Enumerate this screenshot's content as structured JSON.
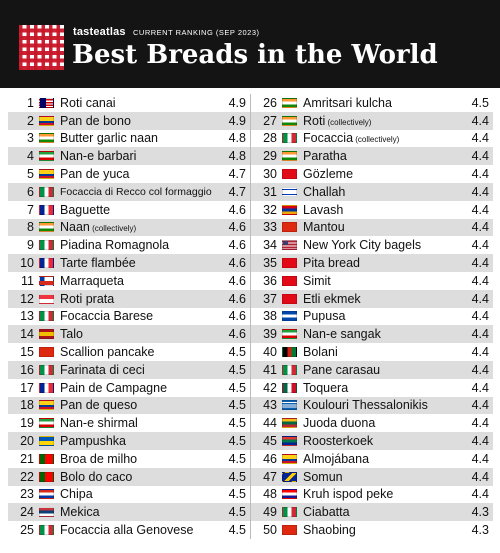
{
  "header": {
    "brand_main": "tasteatlas",
    "ranking_label": "CURRENT RANKING (SEP 2023)",
    "title": "Best Breads in the World"
  },
  "icons": {
    "logo": "checkered-tablecloth-logo"
  },
  "left_column": [
    {
      "rank": "1",
      "name": "Roti canai",
      "suffix": "",
      "score": "4.9",
      "flag": "malaysia",
      "colors": [
        "#cc0001",
        "#ffffff",
        "#010066"
      ],
      "shaded": false
    },
    {
      "rank": "2",
      "name": "Pan de bono",
      "suffix": "",
      "score": "4.9",
      "flag": "colombia",
      "colors": [
        "#fcd116",
        "#003893",
        "#ce1126"
      ],
      "shaded": true
    },
    {
      "rank": "3",
      "name": "Butter garlic naan",
      "suffix": "",
      "score": "4.8",
      "flag": "india",
      "colors": [
        "#ff9933",
        "#ffffff",
        "#138808"
      ],
      "shaded": false
    },
    {
      "rank": "4",
      "name": "Nan-e barbari",
      "suffix": "",
      "score": "4.8",
      "flag": "iran",
      "colors": [
        "#239f40",
        "#ffffff",
        "#da0000"
      ],
      "shaded": true
    },
    {
      "rank": "5",
      "name": "Pan de yuca",
      "suffix": "",
      "score": "4.7",
      "flag": "colombia",
      "colors": [
        "#fcd116",
        "#003893",
        "#ce1126"
      ],
      "shaded": false
    },
    {
      "rank": "6",
      "name": "Focaccia di Recco col formaggio",
      "suffix": "",
      "score": "4.7",
      "flag": "italy",
      "colors": [
        "#009246",
        "#ffffff",
        "#ce2b37"
      ],
      "shaded": true,
      "small": true
    },
    {
      "rank": "7",
      "name": "Baguette",
      "suffix": "",
      "score": "4.6",
      "flag": "france",
      "colors": [
        "#002395",
        "#ffffff",
        "#ed2939"
      ],
      "shaded": false
    },
    {
      "rank": "8",
      "name": "Naan",
      "suffix": "(collectively)",
      "score": "4.6",
      "flag": "india",
      "colors": [
        "#ff9933",
        "#ffffff",
        "#138808"
      ],
      "shaded": true
    },
    {
      "rank": "9",
      "name": "Piadina Romagnola",
      "suffix": "",
      "score": "4.6",
      "flag": "italy",
      "colors": [
        "#009246",
        "#ffffff",
        "#ce2b37"
      ],
      "shaded": false
    },
    {
      "rank": "10",
      "name": "Tarte flambée",
      "suffix": "",
      "score": "4.6",
      "flag": "france",
      "colors": [
        "#002395",
        "#ffffff",
        "#ed2939"
      ],
      "shaded": true
    },
    {
      "rank": "11",
      "name": "Marraqueta",
      "suffix": "",
      "score": "4.6",
      "flag": "chile",
      "colors": [
        "#ffffff",
        "#d52b1e",
        "#0039a6"
      ],
      "shaded": false
    },
    {
      "rank": "12",
      "name": "Roti prata",
      "suffix": "",
      "score": "4.6",
      "flag": "singapore",
      "colors": [
        "#ef3340",
        "#ffffff",
        "#ffffff"
      ],
      "shaded": true
    },
    {
      "rank": "13",
      "name": "Focaccia Barese",
      "suffix": "",
      "score": "4.6",
      "flag": "italy",
      "colors": [
        "#009246",
        "#ffffff",
        "#ce2b37"
      ],
      "shaded": false
    },
    {
      "rank": "14",
      "name": "Talo",
      "suffix": "",
      "score": "4.6",
      "flag": "spain",
      "colors": [
        "#aa151b",
        "#f1bf00",
        "#aa151b"
      ],
      "shaded": true
    },
    {
      "rank": "15",
      "name": "Scallion pancake",
      "suffix": "",
      "score": "4.5",
      "flag": "china",
      "colors": [
        "#de2910",
        "#de2910",
        "#de2910"
      ],
      "shaded": false
    },
    {
      "rank": "16",
      "name": "Farinata di ceci",
      "suffix": "",
      "score": "4.5",
      "flag": "italy",
      "colors": [
        "#009246",
        "#ffffff",
        "#ce2b37"
      ],
      "shaded": true
    },
    {
      "rank": "17",
      "name": "Pain de Campagne",
      "suffix": "",
      "score": "4.5",
      "flag": "france",
      "colors": [
        "#002395",
        "#ffffff",
        "#ed2939"
      ],
      "shaded": false
    },
    {
      "rank": "18",
      "name": "Pan de queso",
      "suffix": "",
      "score": "4.5",
      "flag": "colombia",
      "colors": [
        "#fcd116",
        "#003893",
        "#ce1126"
      ],
      "shaded": true
    },
    {
      "rank": "19",
      "name": "Nan-e shirmal",
      "suffix": "",
      "score": "4.5",
      "flag": "iran",
      "colors": [
        "#239f40",
        "#ffffff",
        "#da0000"
      ],
      "shaded": false
    },
    {
      "rank": "20",
      "name": "Pampushka",
      "suffix": "",
      "score": "4.5",
      "flag": "ukraine",
      "colors": [
        "#0057b7",
        "#0057b7",
        "#ffd700"
      ],
      "shaded": true
    },
    {
      "rank": "21",
      "name": "Broa de milho",
      "suffix": "",
      "score": "4.5",
      "flag": "portugal",
      "colors": [
        "#006600",
        "#ff0000",
        "#ff0000"
      ],
      "shaded": false
    },
    {
      "rank": "22",
      "name": "Bolo do caco",
      "suffix": "",
      "score": "4.5",
      "flag": "portugal",
      "colors": [
        "#006600",
        "#ff0000",
        "#ff0000"
      ],
      "shaded": true
    },
    {
      "rank": "23",
      "name": "Chipa",
      "suffix": "",
      "score": "4.5",
      "flag": "paraguay",
      "colors": [
        "#d52b1e",
        "#ffffff",
        "#0038a8"
      ],
      "shaded": false
    },
    {
      "rank": "24",
      "name": "Mekica",
      "suffix": "",
      "score": "4.5",
      "flag": "serbia",
      "colors": [
        "#c6363c",
        "#0c4076",
        "#ffffff"
      ],
      "shaded": true
    },
    {
      "rank": "25",
      "name": "Focaccia alla Genovese",
      "suffix": "",
      "score": "4.5",
      "flag": "italy",
      "colors": [
        "#009246",
        "#ffffff",
        "#ce2b37"
      ],
      "shaded": false
    }
  ],
  "right_column": [
    {
      "rank": "26",
      "name": "Amritsari kulcha",
      "suffix": "",
      "score": "4.5",
      "flag": "india",
      "colors": [
        "#ff9933",
        "#ffffff",
        "#138808"
      ],
      "shaded": false
    },
    {
      "rank": "27",
      "name": "Roti",
      "suffix": "(collectively)",
      "score": "4.4",
      "flag": "india",
      "colors": [
        "#ff9933",
        "#ffffff",
        "#138808"
      ],
      "shaded": true
    },
    {
      "rank": "28",
      "name": "Focaccia",
      "suffix": "(collectively)",
      "score": "4.4",
      "flag": "italy",
      "colors": [
        "#009246",
        "#ffffff",
        "#ce2b37"
      ],
      "shaded": false
    },
    {
      "rank": "29",
      "name": "Paratha",
      "suffix": "",
      "score": "4.4",
      "flag": "india",
      "colors": [
        "#ff9933",
        "#ffffff",
        "#138808"
      ],
      "shaded": true
    },
    {
      "rank": "30",
      "name": "Gözleme",
      "suffix": "",
      "score": "4.4",
      "flag": "turkey",
      "colors": [
        "#e30a17",
        "#e30a17",
        "#e30a17"
      ],
      "shaded": false
    },
    {
      "rank": "31",
      "name": "Challah",
      "suffix": "",
      "score": "4.4",
      "flag": "israel",
      "colors": [
        "#0038b8",
        "#ffffff",
        "#0038b8"
      ],
      "shaded": true
    },
    {
      "rank": "32",
      "name": "Lavash",
      "suffix": "",
      "score": "4.4",
      "flag": "armenia",
      "colors": [
        "#d90012",
        "#0033a0",
        "#f2a800"
      ],
      "shaded": false
    },
    {
      "rank": "33",
      "name": "Mantou",
      "suffix": "",
      "score": "4.4",
      "flag": "china",
      "colors": [
        "#de2910",
        "#de2910",
        "#de2910"
      ],
      "shaded": true
    },
    {
      "rank": "34",
      "name": "New York City bagels",
      "suffix": "",
      "score": "4.4",
      "flag": "usa",
      "colors": [
        "#b22234",
        "#ffffff",
        "#3c3b6e"
      ],
      "shaded": false
    },
    {
      "rank": "35",
      "name": "Pita bread",
      "suffix": "",
      "score": "4.4",
      "flag": "turkey",
      "colors": [
        "#e30a17",
        "#e30a17",
        "#e30a17"
      ],
      "shaded": true
    },
    {
      "rank": "36",
      "name": "Simit",
      "suffix": "",
      "score": "4.4",
      "flag": "turkey",
      "colors": [
        "#e30a17",
        "#e30a17",
        "#e30a17"
      ],
      "shaded": false
    },
    {
      "rank": "37",
      "name": "Etli ekmek",
      "suffix": "",
      "score": "4.4",
      "flag": "turkey",
      "colors": [
        "#e30a17",
        "#e30a17",
        "#e30a17"
      ],
      "shaded": true
    },
    {
      "rank": "38",
      "name": "Pupusa",
      "suffix": "",
      "score": "4.4",
      "flag": "el-salvador",
      "colors": [
        "#0047ab",
        "#ffffff",
        "#0047ab"
      ],
      "shaded": false
    },
    {
      "rank": "39",
      "name": "Nan-e sangak",
      "suffix": "",
      "score": "4.4",
      "flag": "iran",
      "colors": [
        "#239f40",
        "#ffffff",
        "#da0000"
      ],
      "shaded": true
    },
    {
      "rank": "40",
      "name": "Bolani",
      "suffix": "",
      "score": "4.4",
      "flag": "afghanistan",
      "colors": [
        "#000000",
        "#d32011",
        "#007a36"
      ],
      "shaded": false
    },
    {
      "rank": "41",
      "name": "Pane carasau",
      "suffix": "",
      "score": "4.4",
      "flag": "italy",
      "colors": [
        "#009246",
        "#ffffff",
        "#ce2b37"
      ],
      "shaded": true
    },
    {
      "rank": "42",
      "name": "Toquera",
      "suffix": "",
      "score": "4.4",
      "flag": "mexico",
      "colors": [
        "#006847",
        "#ffffff",
        "#ce1126"
      ],
      "shaded": false
    },
    {
      "rank": "43",
      "name": "Koulouri Thessalonikis",
      "suffix": "",
      "score": "4.4",
      "flag": "greece",
      "colors": [
        "#0d5eaf",
        "#ffffff",
        "#0d5eaf"
      ],
      "shaded": true
    },
    {
      "rank": "44",
      "name": "Juoda duona",
      "suffix": "",
      "score": "4.4",
      "flag": "lithuania",
      "colors": [
        "#fdb913",
        "#006a44",
        "#c1272d"
      ],
      "shaded": false
    },
    {
      "rank": "45",
      "name": "Roosterkoek",
      "suffix": "",
      "score": "4.4",
      "flag": "south-africa",
      "colors": [
        "#007a4d",
        "#ffb612",
        "#de3831"
      ],
      "shaded": true
    },
    {
      "rank": "46",
      "name": "Almojábana",
      "suffix": "",
      "score": "4.4",
      "flag": "colombia",
      "colors": [
        "#fcd116",
        "#003893",
        "#ce1126"
      ],
      "shaded": false
    },
    {
      "rank": "47",
      "name": "Somun",
      "suffix": "",
      "score": "4.4",
      "flag": "bosnia",
      "colors": [
        "#002395",
        "#fecb00",
        "#002395"
      ],
      "shaded": true
    },
    {
      "rank": "48",
      "name": "Kruh ispod peke",
      "suffix": "",
      "score": "4.4",
      "flag": "croatia",
      "colors": [
        "#ff0000",
        "#ffffff",
        "#171796"
      ],
      "shaded": false
    },
    {
      "rank": "49",
      "name": "Ciabatta",
      "suffix": "",
      "score": "4.3",
      "flag": "italy",
      "colors": [
        "#009246",
        "#ffffff",
        "#ce2b37"
      ],
      "shaded": true
    },
    {
      "rank": "50",
      "name": "Shaobing",
      "suffix": "",
      "score": "4.3",
      "flag": "china",
      "colors": [
        "#de2910",
        "#de2910",
        "#de2910"
      ],
      "shaded": false
    }
  ]
}
